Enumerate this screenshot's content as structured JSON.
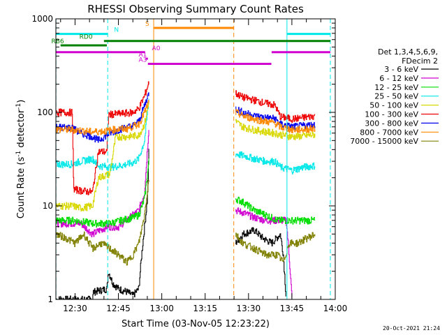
{
  "chart_data": {
    "type": "line",
    "title": "RHESSI Observing Summary Count Rates",
    "xlabel": "Start Time (03-Nov-05 12:23:22)",
    "ylabel": "Count Rate (s^-1 detector^-1)",
    "ylabel_prefix": "Count Rate (s",
    "ylabel_sup1": "-1",
    "ylabel_mid": " detector",
    "ylabel_sup2": "-1",
    "ylabel_suffix": ")",
    "yscale": "log",
    "xlim_min": [
      23.37,
      120.0
    ],
    "ylim": [
      1,
      1000
    ],
    "x_ticks": [
      {
        "min": 30,
        "label": "12:30"
      },
      {
        "min": 45,
        "label": "12:45"
      },
      {
        "min": 60,
        "label": "13:00"
      },
      {
        "min": 75,
        "label": "13:15"
      },
      {
        "min": 90,
        "label": "13:30"
      },
      {
        "min": 105,
        "label": "13:45"
      },
      {
        "min": 120,
        "label": "14:00"
      }
    ],
    "y_ticks": [
      {
        "value": 1,
        "label": "1"
      },
      {
        "value": 10,
        "label": "10"
      },
      {
        "value": 100,
        "label": "100"
      },
      {
        "value": 1000,
        "label": "1000"
      }
    ],
    "legend_header": [
      "Det 1,3,4,5,6,9,",
      "FDecim 2"
    ],
    "series": [
      {
        "name": "3 - 6 keV",
        "color": "#000000",
        "segments": [
          [
            [
              23.4,
              1
            ],
            [
              36,
              1
            ],
            [
              36.2,
              1.2
            ],
            [
              41,
              1.3
            ],
            [
              41.5,
              2
            ],
            [
              43,
              1.5
            ],
            [
              45,
              1.3
            ],
            [
              48,
              1.2
            ],
            [
              50,
              1.1
            ],
            [
              52,
              1.3
            ],
            [
              53,
              3
            ],
            [
              54,
              6
            ],
            [
              55,
              12
            ],
            [
              55.5,
              40
            ]
          ],
          [
            [
              85.5,
              4
            ],
            [
              88,
              5
            ],
            [
              92,
              5.5
            ],
            [
              95,
              4.5
            ],
            [
              98,
              4
            ],
            [
              101,
              5
            ],
            [
              102,
              3
            ],
            [
              103,
              1
            ]
          ]
        ]
      },
      {
        "name": "6 - 12 keV",
        "color": "#d000d0",
        "segments": [
          [
            [
              23.4,
              6.5
            ],
            [
              32,
              6.5
            ],
            [
              36,
              5
            ],
            [
              41,
              6
            ],
            [
              45,
              6
            ],
            [
              50,
              8
            ],
            [
              52,
              9
            ],
            [
              54,
              14
            ],
            [
              55.5,
              70
            ]
          ],
          [
            [
              85.5,
              9
            ],
            [
              88,
              8.5
            ],
            [
              92,
              7.5
            ],
            [
              96,
              7
            ],
            [
              100,
              7
            ],
            [
              103,
              7
            ],
            [
              104,
              3
            ],
            [
              105,
              1
            ]
          ]
        ]
      },
      {
        "name": "12 - 25 keV",
        "color": "#00dd00",
        "segments": [
          [
            [
              23.4,
              7
            ],
            [
              30,
              7
            ],
            [
              36,
              6.5
            ],
            [
              42,
              6.5
            ],
            [
              46,
              7
            ],
            [
              50,
              7.5
            ],
            [
              52,
              8
            ],
            [
              54,
              12
            ],
            [
              55.5,
              30
            ]
          ],
          [
            [
              85.5,
              12
            ],
            [
              88,
              11
            ],
            [
              92,
              9
            ],
            [
              96,
              8
            ],
            [
              100,
              7
            ],
            [
              106,
              7
            ],
            [
              110,
              7
            ],
            [
              113,
              7
            ]
          ]
        ]
      },
      {
        "name": "25 - 50 keV",
        "color": "#00e8e8",
        "segments": [
          [
            [
              23.4,
              28
            ],
            [
              29,
              28
            ],
            [
              32,
              30
            ],
            [
              36,
              32
            ],
            [
              38,
              27
            ],
            [
              42,
              26
            ],
            [
              46,
              27
            ],
            [
              50,
              29
            ],
            [
              52,
              32
            ],
            [
              54,
              50
            ],
            [
              55.5,
              140
            ]
          ],
          [
            [
              85.5,
              36
            ],
            [
              89,
              34
            ],
            [
              92,
              32
            ],
            [
              96,
              30
            ],
            [
              99,
              30
            ],
            [
              101,
              26
            ],
            [
              105,
              24
            ],
            [
              109,
              26
            ],
            [
              113,
              27
            ]
          ]
        ]
      },
      {
        "name": "50 - 100 keV",
        "color": "#d8d800",
        "segments": [
          [
            [
              23.4,
              10
            ],
            [
              29,
              10
            ],
            [
              32,
              9.5
            ],
            [
              36,
              10
            ],
            [
              38,
              20
            ],
            [
              42,
              22
            ],
            [
              44,
              55
            ],
            [
              48,
              55
            ],
            [
              52,
              57
            ],
            [
              54,
              75
            ],
            [
              55.5,
              130
            ]
          ],
          [
            [
              85.5,
              80
            ],
            [
              88,
              70
            ],
            [
              92,
              65
            ],
            [
              96,
              62
            ],
            [
              99,
              60
            ],
            [
              101,
              58
            ],
            [
              105,
              55
            ],
            [
              109,
              56
            ],
            [
              113,
              58
            ]
          ]
        ]
      },
      {
        "name": "100 - 300 keV",
        "color": "#ee0000",
        "segments": [
          [
            [
              23.4,
              100
            ],
            [
              29,
              100
            ],
            [
              29.5,
              15
            ],
            [
              36,
              14
            ],
            [
              38,
              38
            ],
            [
              41,
              38
            ],
            [
              41.5,
              95
            ],
            [
              46,
              97
            ],
            [
              50,
              100
            ],
            [
              52,
              110
            ],
            [
              54,
              150
            ],
            [
              55.5,
              210
            ]
          ],
          [
            [
              85.5,
              160
            ],
            [
              88,
              145
            ],
            [
              92,
              135
            ],
            [
              96,
              125
            ],
            [
              99,
              120
            ],
            [
              101,
              90
            ],
            [
              105,
              85
            ],
            [
              109,
              88
            ],
            [
              113,
              92
            ]
          ]
        ]
      },
      {
        "name": "300 - 800 keV",
        "color": "#0000ee",
        "segments": [
          [
            [
              23.4,
              70
            ],
            [
              29,
              68
            ],
            [
              32,
              60
            ],
            [
              36,
              55
            ],
            [
              38,
              50
            ],
            [
              42,
              60
            ],
            [
              46,
              67
            ],
            [
              50,
              72
            ],
            [
              52,
              80
            ],
            [
              54,
              120
            ],
            [
              55.5,
              160
            ]
          ],
          [
            [
              85.5,
              110
            ],
            [
              88,
              100
            ],
            [
              92,
              92
            ],
            [
              96,
              88
            ],
            [
              99,
              86
            ],
            [
              101,
              75
            ],
            [
              105,
              70
            ],
            [
              109,
              72
            ],
            [
              113,
              74
            ]
          ]
        ]
      },
      {
        "name": "800 - 7000 keV",
        "color": "#ff8800",
        "segments": [
          [
            [
              23.4,
              66
            ],
            [
              30,
              65
            ],
            [
              36,
              62
            ],
            [
              40,
              63
            ],
            [
              44,
              66
            ],
            [
              48,
              67
            ],
            [
              52,
              75
            ],
            [
              54,
              100
            ],
            [
              55.5,
              130
            ]
          ],
          [
            [
              85.5,
              100
            ],
            [
              88,
              92
            ],
            [
              92,
              85
            ],
            [
              96,
              80
            ],
            [
              99,
              77
            ],
            [
              101,
              70
            ],
            [
              105,
              65
            ],
            [
              109,
              66
            ],
            [
              113,
              67
            ]
          ]
        ]
      },
      {
        "name": "7000 - 15000 keV",
        "color": "#808000",
        "segments": [
          [
            [
              23.4,
              5
            ],
            [
              27,
              4.5
            ],
            [
              30,
              4
            ],
            [
              33,
              5
            ],
            [
              36,
              3.5
            ],
            [
              39,
              4
            ],
            [
              42,
              3.5
            ],
            [
              45,
              3
            ],
            [
              48,
              2.5
            ],
            [
              50,
              3
            ],
            [
              52,
              4
            ],
            [
              54,
              8
            ],
            [
              55.5,
              20
            ]
          ],
          [
            [
              85.5,
              5
            ],
            [
              88,
              4
            ],
            [
              92,
              3.5
            ],
            [
              96,
              3
            ],
            [
              100,
              3
            ],
            [
              102,
              2.5
            ],
            [
              104,
              4
            ],
            [
              107,
              4
            ],
            [
              110,
              4.5
            ],
            [
              113,
              5
            ]
          ]
        ]
      }
    ],
    "vlines": [
      {
        "x": 23.4,
        "color": "#00e8e8",
        "style": "dashed"
      },
      {
        "x": 41.3,
        "color": "#00e8e8",
        "style": "dashed"
      },
      {
        "x": 57.2,
        "color": "#ff8800",
        "style": "solid"
      },
      {
        "x": 84.9,
        "color": "#ff8800",
        "style": "dashed"
      },
      {
        "x": 103.3,
        "color": "#00e8e8",
        "style": "solid"
      },
      {
        "x": 118.3,
        "color": "#00e8e8",
        "style": "dashed"
      }
    ],
    "flag_bars": [
      {
        "label": "N",
        "color": "#00e8e8",
        "y": 690,
        "segments": [
          [
            23.4,
            41.3
          ],
          [
            103.3,
            118.3
          ]
        ],
        "label_x": 43.5
      },
      {
        "label": "S",
        "color": "#ff8800",
        "y": 800,
        "segments": [
          [
            57.2,
            84.9
          ]
        ],
        "label_x": 54.3
      },
      {
        "label": "RD0",
        "color": "#008000",
        "y": 580,
        "segments": [
          [
            40.0,
            118.3
          ]
        ],
        "label_x": 31.5
      },
      {
        "label": "RB6",
        "color": "#008000",
        "y": 520,
        "segments": [
          [
            25.0,
            41.0
          ]
        ],
        "label_x": 21.8
      },
      {
        "label": "A0",
        "color": "#d000d0",
        "y": 440,
        "segments": [
          [
            23.4,
            54.2
          ],
          [
            98.0,
            118.3
          ]
        ],
        "label_x": 56.6
      },
      {
        "label": "A1",
        "color": "#d000d0",
        "y": 375,
        "segments": [
          [
            54.4,
            55.2
          ]
        ],
        "label_x": 52.0
      },
      {
        "label": "A3",
        "color": "#d000d0",
        "y": 330,
        "segments": [
          [
            55.2,
            97.9
          ]
        ],
        "label_x": 52.0
      }
    ]
  },
  "footer": {
    "date": "20-Oct-2021 21:24"
  }
}
